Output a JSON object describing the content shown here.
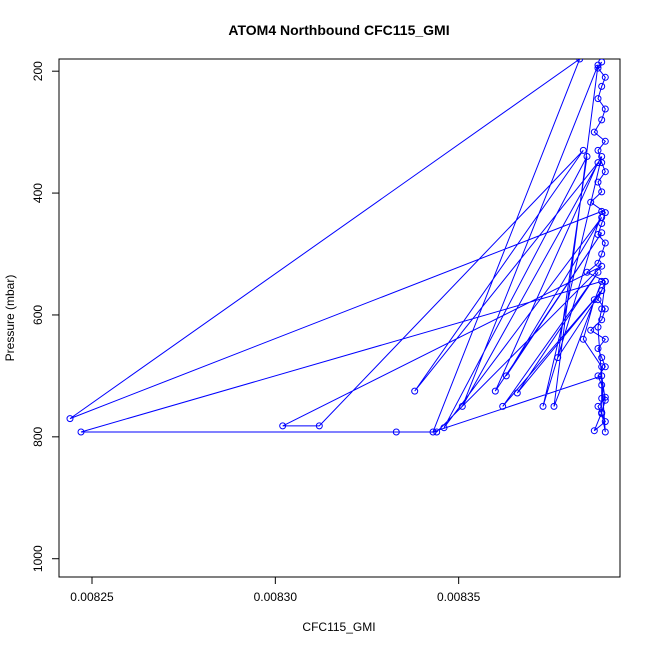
{
  "chart_data": {
    "type": "line",
    "title": "ATOM4 Northbound CFC115_GMI",
    "xlabel": "CFC115_GMI",
    "ylabel": "Pressure (mbar)",
    "xlim": [
      0.008241,
      0.008394
    ],
    "ylim": [
      1030,
      180
    ],
    "x_ticks": [
      0.00825,
      0.0083,
      0.00835
    ],
    "x_tick_labels": [
      "0.00825",
      "0.00830",
      "0.00835"
    ],
    "y_ticks": [
      200,
      400,
      600,
      800,
      1000
    ],
    "y_tick_labels": [
      "200",
      "400",
      "600",
      "800",
      "1000"
    ],
    "grid": false,
    "legend": "none",
    "series_color": "#0000ff",
    "series": [
      {
        "x": [
          0.008389,
          0.008388,
          0.00839,
          0.008389,
          0.008388,
          0.00839,
          0.008389,
          0.008387,
          0.00839,
          0.008388,
          0.008389,
          0.00839,
          0.008388,
          0.008389,
          0.008386,
          0.00839,
          0.008389,
          0.008388,
          0.00839,
          0.008389,
          0.008388,
          0.008385,
          0.00839,
          0.008389,
          0.008388,
          0.00839,
          0.008389,
          0.008386,
          0.00839,
          0.008388,
          0.008389,
          0.00839,
          0.008388,
          0.008389,
          0.00839,
          0.008388,
          0.008389,
          0.00839,
          0.008387,
          0.008389,
          0.00839,
          0.008389,
          0.008343,
          0.008383,
          0.008244,
          0.008389,
          0.008373,
          0.008389,
          0.008351,
          0.008388,
          0.008376,
          0.008389,
          0.008247,
          0.008333,
          0.008344,
          0.008389,
          0.008302,
          0.008312,
          0.008384,
          0.008338,
          0.008388,
          0.00836,
          0.008389,
          0.008363,
          0.008389,
          0.008346,
          0.008385,
          0.008377,
          0.008389,
          0.008362,
          0.008388,
          0.008366,
          0.008387,
          0.008384,
          0.008389,
          0.008389,
          0.008389,
          0.00839,
          0.008388,
          0.008389,
          0.00839
        ],
        "y": [
          185,
          195,
          210,
          225,
          245,
          262,
          280,
          300,
          315,
          330,
          350,
          365,
          382,
          398,
          415,
          432,
          450,
          468,
          482,
          500,
          515,
          530,
          545,
          560,
          575,
          590,
          608,
          625,
          640,
          655,
          670,
          685,
          700,
          715,
          735,
          750,
          762,
          775,
          790,
          760,
          740,
          700,
          792,
          180,
          770,
          430,
          750,
          340,
          750,
          190,
          750,
          545,
          792,
          792,
          792,
          520,
          782,
          782,
          330,
          725,
          350,
          725,
          465,
          700,
          440,
          785,
          340,
          670,
          560,
          750,
          530,
          728,
          575,
          640,
          685,
          737,
          760,
          792,
          620,
          590,
          545
        ]
      }
    ]
  }
}
